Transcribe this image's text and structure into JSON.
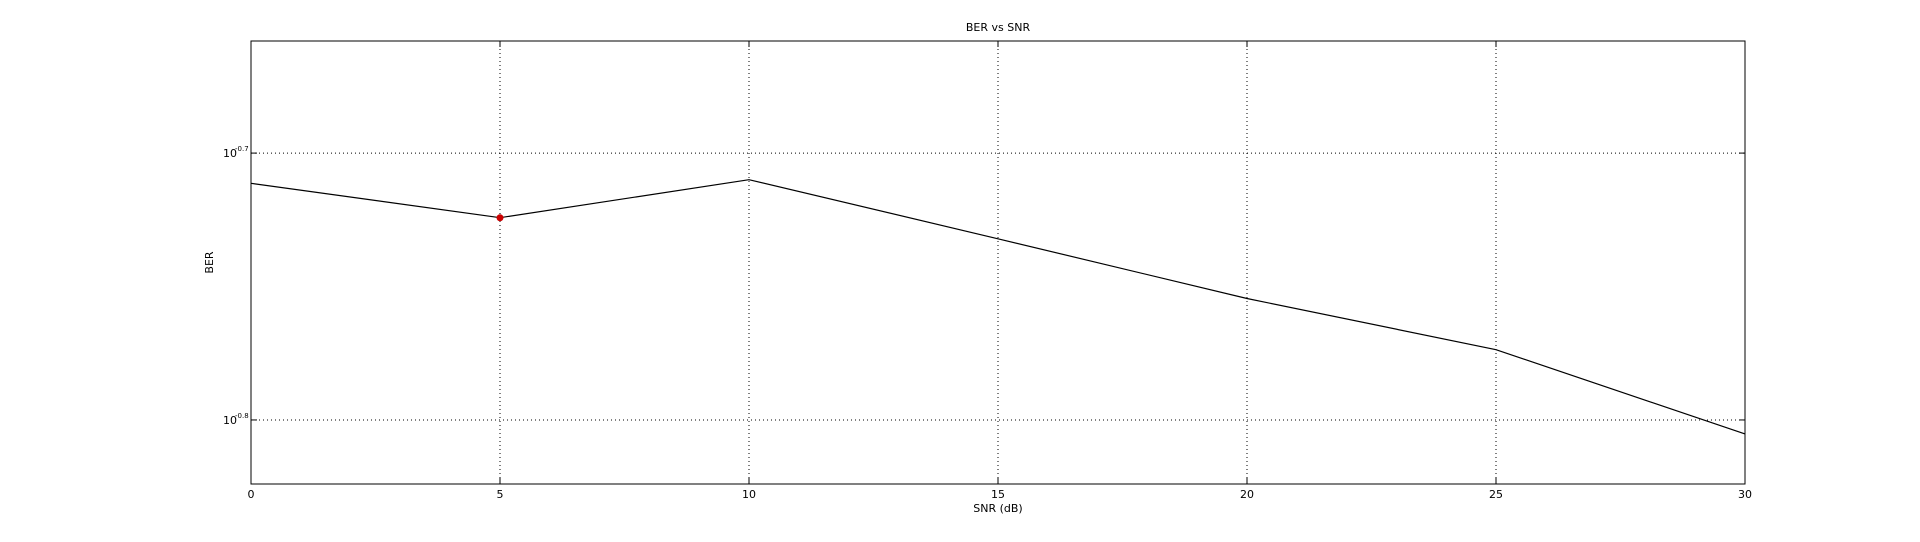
{
  "chart_data": {
    "type": "line",
    "title": "BER vs SNR",
    "xlabel": "SNR (dB)",
    "ylabel": "BER",
    "xlim": [
      0,
      30
    ],
    "ylim_log10": [
      -0.824,
      -0.658
    ],
    "y_scale": "log",
    "grid": true,
    "x_ticks": [
      0,
      5,
      10,
      15,
      20,
      25,
      30
    ],
    "x_tick_labels": [
      "0",
      "5",
      "10",
      "15",
      "20",
      "25",
      "30"
    ],
    "y_ticks_log10": [
      -0.7,
      -0.8
    ],
    "y_tick_labels": [
      {
        "base": "10",
        "exp": "-0.7"
      },
      {
        "base": "10",
        "exp": "-0.8"
      }
    ],
    "series": [
      {
        "color": "#000000",
        "x": [
          0,
          5,
          10,
          15,
          20,
          25,
          30
        ],
        "y": [
          0.1944,
          0.1887,
          0.195,
          0.1853,
          0.176,
          0.1684,
          0.1566
        ]
      }
    ],
    "highlight_point": {
      "x": 5,
      "y": 0.1887,
      "color": "#cc0000"
    }
  }
}
